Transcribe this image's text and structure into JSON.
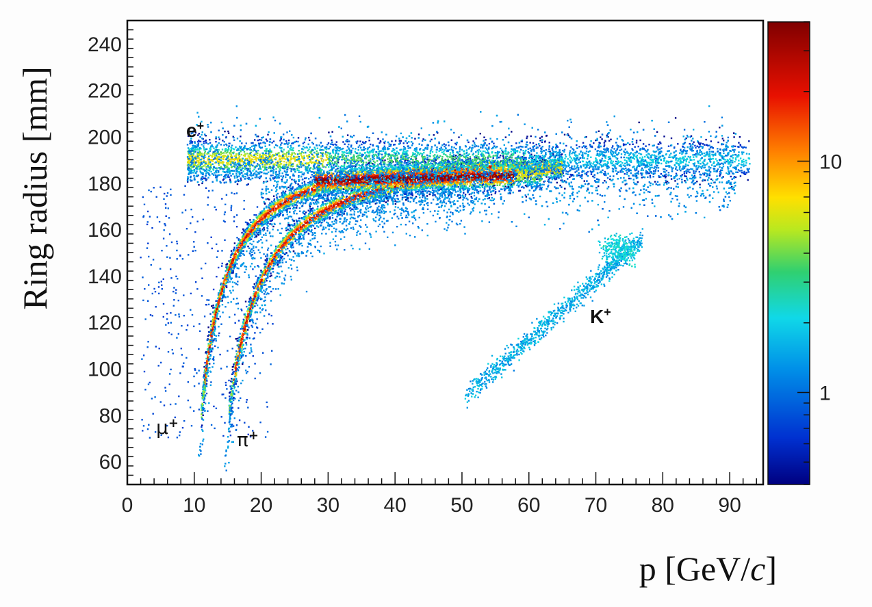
{
  "chart_data": {
    "type": "heatmap",
    "title": "",
    "xlabel": "p [GeV/c]",
    "ylabel": "Ring radius [mm]",
    "xlim": [
      0,
      95
    ],
    "ylim": [
      50,
      250
    ],
    "x_ticks": [
      0,
      10,
      20,
      30,
      40,
      50,
      60,
      70,
      80,
      90
    ],
    "y_ticks": [
      60,
      80,
      100,
      120,
      140,
      160,
      180,
      200,
      220,
      240
    ],
    "colorbar": {
      "scale": "log",
      "range": [
        0.4,
        40
      ],
      "tick_labels": [
        {
          "value": 1,
          "label": "1"
        },
        {
          "value": 10,
          "label": "10"
        }
      ],
      "colormap": [
        "#000080",
        "#0030d0",
        "#0090e8",
        "#10e0e0",
        "#40d060",
        "#c8e820",
        "#ffd000",
        "#ff7000",
        "#e01000",
        "#8b0000"
      ]
    },
    "bands": [
      {
        "particle": "e+",
        "label": "e",
        "sup": "+",
        "p_range": [
          9,
          93
        ],
        "radius_mm": 190
      },
      {
        "particle": "mu+",
        "label": "μ",
        "sup": "+",
        "p_range": [
          10.2,
          65
        ],
        "radius_limit_mm": 190
      },
      {
        "particle": "pi+",
        "label": "π",
        "sup": "+",
        "p_range": [
          14,
          65
        ],
        "radius_limit_mm": 190
      },
      {
        "particle": "K+",
        "label": "K",
        "sup": "+",
        "p_range": [
          50.5,
          77
        ],
        "radius_limit_mm": 155
      }
    ],
    "grid": false
  }
}
